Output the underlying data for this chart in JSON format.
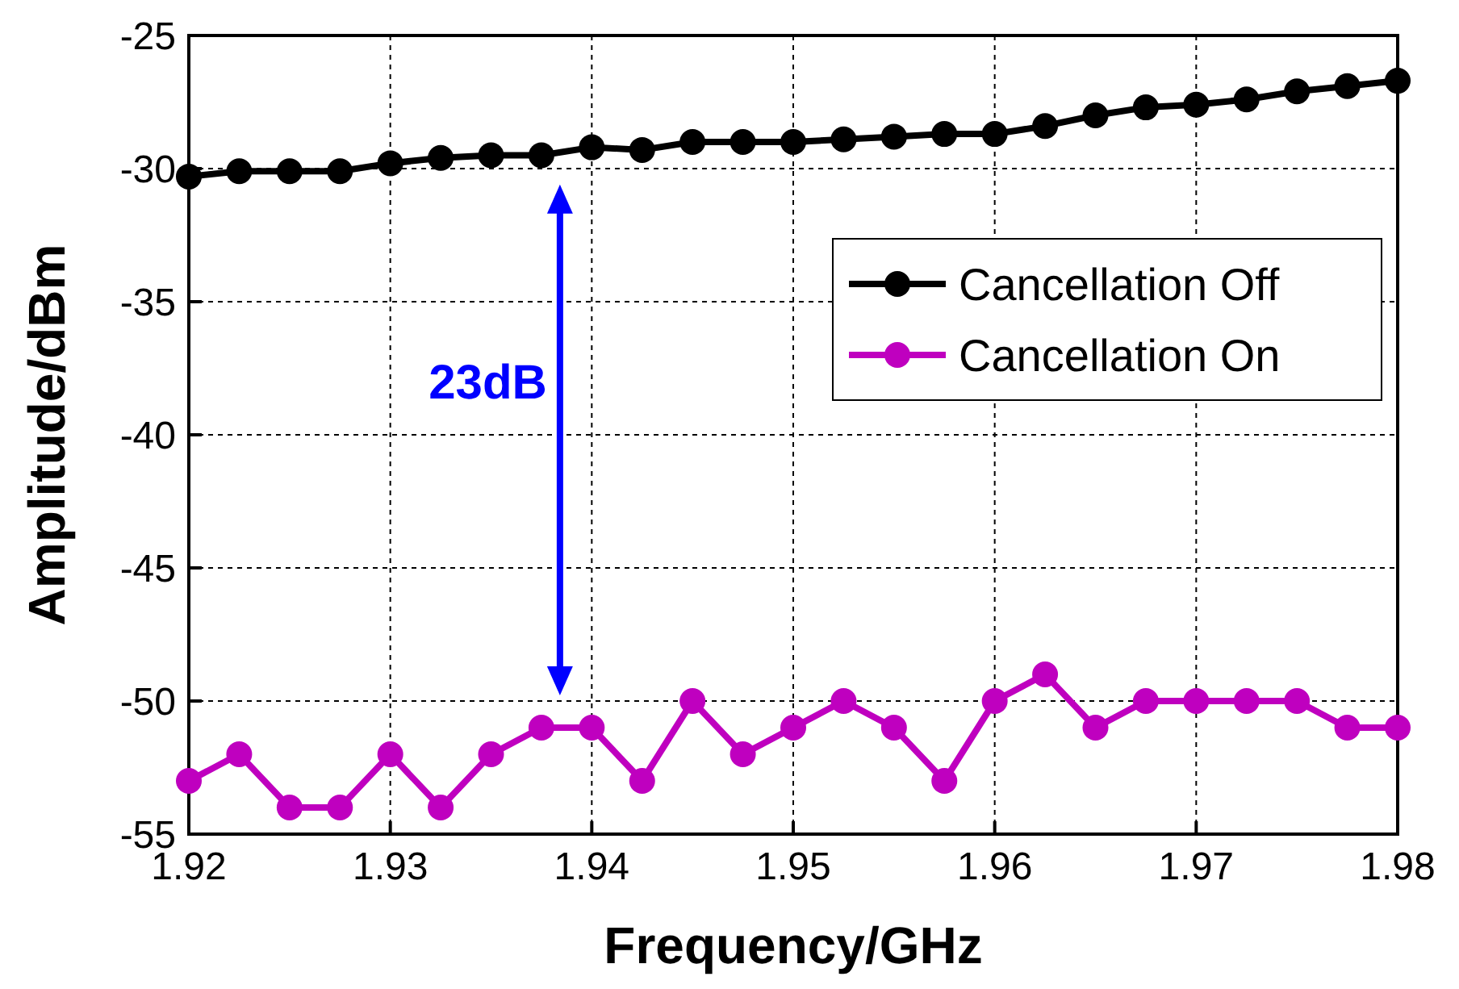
{
  "chart_data": {
    "type": "line",
    "xlabel": "Frequency/GHz",
    "ylabel": "Amplitude/dBm",
    "x": [
      1.92,
      1.9225,
      1.925,
      1.9275,
      1.93,
      1.9325,
      1.935,
      1.9375,
      1.94,
      1.9425,
      1.945,
      1.9475,
      1.95,
      1.9525,
      1.955,
      1.9575,
      1.96,
      1.9625,
      1.965,
      1.9675,
      1.97,
      1.9725,
      1.975,
      1.9775,
      1.98
    ],
    "series": [
      {
        "name": "Cancellation Off",
        "color": "#000000",
        "values": [
          -30.3,
          -30.1,
          -30.1,
          -30.1,
          -29.8,
          -29.6,
          -29.5,
          -29.5,
          -29.2,
          -29.3,
          -29.0,
          -29.0,
          -29.0,
          -28.9,
          -28.8,
          -28.7,
          -28.7,
          -28.4,
          -28.0,
          -27.7,
          -27.6,
          -27.4,
          -27.1,
          -26.9,
          -26.7
        ]
      },
      {
        "name": "Cancellation On",
        "color": "#bf00bf",
        "values": [
          -53,
          -52,
          -54,
          -54,
          -52,
          -54,
          -52,
          -51,
          -51,
          -53,
          -50,
          -52,
          -51,
          -50,
          -51,
          -53,
          -50,
          -49,
          -51,
          -50,
          -50,
          -50,
          -50,
          -51,
          -51
        ]
      }
    ],
    "xlim": [
      1.92,
      1.98
    ],
    "xticks": [
      1.92,
      1.93,
      1.94,
      1.95,
      1.96,
      1.97,
      1.98
    ],
    "ylim": [
      -55,
      -25
    ],
    "yticks": [
      -55,
      -50,
      -45,
      -40,
      -35,
      -30,
      -25
    ],
    "grid": true,
    "legend": "top right",
    "marker": "circle",
    "line_style": "solid",
    "annotations": [
      "23dB"
    ]
  }
}
